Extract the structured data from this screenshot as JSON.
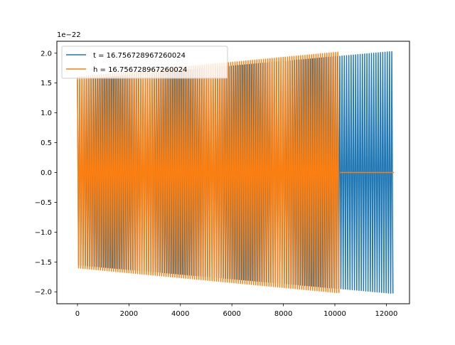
{
  "chart_data": {
    "type": "line",
    "title": "",
    "xlabel": "",
    "ylabel": "",
    "y_offset_label": "1e−22",
    "xlim": [
      -800,
      12900
    ],
    "ylim": [
      -2.2,
      2.2
    ],
    "x_ticks": [
      0,
      2000,
      4000,
      6000,
      8000,
      10000,
      12000
    ],
    "x_tick_labels": [
      "0",
      "2000",
      "4000",
      "6000",
      "8000",
      "10000",
      "12000"
    ],
    "y_ticks": [
      -2.0,
      -1.5,
      -1.0,
      -0.5,
      0.0,
      0.5,
      1.0,
      1.5,
      2.0
    ],
    "y_tick_labels": [
      "−2.0",
      "−1.5",
      "−1.0",
      "−0.5",
      "0.0",
      "0.5",
      "1.0",
      "1.5",
      "2.0"
    ],
    "grid": false,
    "legend_position": "upper-left",
    "series": [
      {
        "name": "t = 16.756728967260024",
        "color": "#1f77b4",
        "x_range": [
          0,
          12300
        ],
        "envelope_x": [
          0,
          12300
        ],
        "envelope_y": [
          1.55,
          2.03
        ],
        "cycles": 140
      },
      {
        "name": "h = 16.756728967260024",
        "color": "#ff7f0e",
        "x_range": [
          0,
          10200
        ],
        "envelope_x": [
          0,
          10200
        ],
        "envelope_y": [
          1.6,
          2.02
        ],
        "cycles": 120,
        "zero_tail_to": 12300
      }
    ]
  }
}
